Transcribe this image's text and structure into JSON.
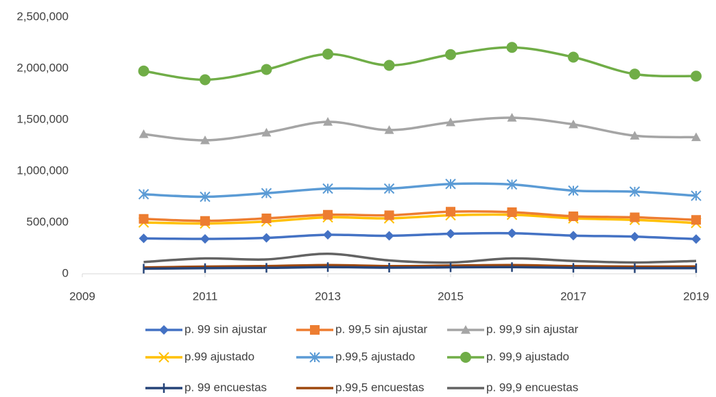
{
  "chart_data": {
    "type": "line",
    "x": [
      2010,
      2011,
      2012,
      2013,
      2014,
      2015,
      2016,
      2017,
      2018,
      2019
    ],
    "xlim": [
      2009,
      2019
    ],
    "xticks": [
      2009,
      2011,
      2013,
      2015,
      2017,
      2019
    ],
    "ylim": [
      0,
      2500000
    ],
    "yticks": [
      0,
      {
        "value": 500000,
        "label": "500,000"
      },
      {
        "value": 1000000,
        "label": "1,000,000"
      },
      {
        "value": 1500000,
        "label": "1,500,000"
      },
      {
        "value": 2000000,
        "label": "2,000,000"
      },
      {
        "value": 2500000,
        "label": "2,500,000"
      }
    ],
    "grid": false,
    "smooth": true,
    "legend": "bottom",
    "series": [
      {
        "name": "p. 99 sin ajustar",
        "color": "#4472c4",
        "marker": "diamond",
        "values": [
          345000,
          340000,
          350000,
          380000,
          370000,
          390000,
          395000,
          372000,
          362000,
          338000
        ]
      },
      {
        "name": "p. 99,5 sin ajustar",
        "color": "#ed7d31",
        "marker": "square",
        "values": [
          535000,
          515000,
          540000,
          575000,
          570000,
          605000,
          600000,
          560000,
          550000,
          525000
        ]
      },
      {
        "name": "p. 99,9 sin ajustar",
        "color": "#a5a5a5",
        "marker": "triangle",
        "values": [
          1360000,
          1300000,
          1375000,
          1480000,
          1400000,
          1475000,
          1520000,
          1455000,
          1345000,
          1330000
        ]
      },
      {
        "name": "p.99 ajustado",
        "color": "#ffc000",
        "marker": "x",
        "values": [
          500000,
          490000,
          510000,
          550000,
          540000,
          570000,
          575000,
          540000,
          525000,
          495000
        ]
      },
      {
        "name": "p.99,5 ajustado",
        "color": "#5b9bd5",
        "marker": "star",
        "values": [
          775000,
          750000,
          785000,
          830000,
          830000,
          875000,
          870000,
          810000,
          800000,
          760000
        ]
      },
      {
        "name": "p. 99,9 ajustado",
        "color": "#70ad47",
        "marker": "circle",
        "values": [
          1975000,
          1890000,
          1990000,
          2140000,
          2030000,
          2135000,
          2205000,
          2110000,
          1945000,
          1925000
        ]
      },
      {
        "name": "p. 99 encuestas",
        "color": "#264478",
        "marker": "plus",
        "values": [
          50000,
          55000,
          58000,
          65000,
          60000,
          63000,
          65000,
          58000,
          55000,
          55000
        ]
      },
      {
        "name": "p.99,5 encuestas",
        "color": "#9e480e",
        "marker": "none",
        "values": [
          62000,
          70000,
          75000,
          85000,
          75000,
          80000,
          85000,
          75000,
          70000,
          72000
        ]
      },
      {
        "name": "p. 99,9 encuestas",
        "color": "#636363",
        "marker": "none",
        "values": [
          115000,
          150000,
          140000,
          195000,
          130000,
          110000,
          150000,
          125000,
          110000,
          125000
        ]
      }
    ]
  }
}
